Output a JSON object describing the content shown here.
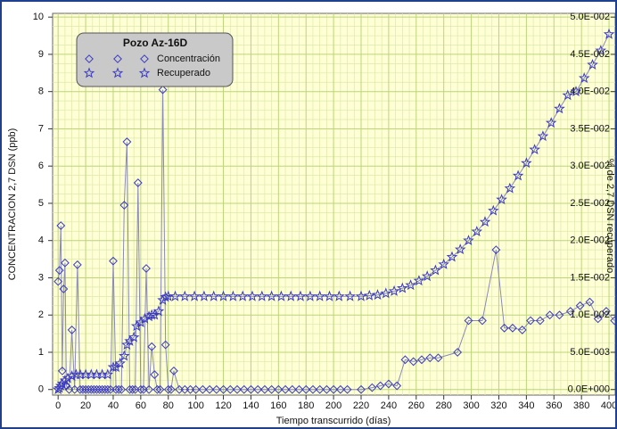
{
  "chart_data": {
    "type": "line",
    "legend_title": "Pozo Az-16D",
    "xlabel": "Tiempo transcurrido (días)",
    "ylabel": "CONCENTRACION 2,7 DSN (ppb)",
    "y2label": "% de 2,7 DSN recuperado",
    "xlim": [
      -4,
      404.5
    ],
    "xticks": [
      0,
      20,
      40,
      60,
      80,
      100,
      120,
      140,
      160,
      180,
      200,
      220,
      240,
      260,
      280,
      300,
      320,
      340,
      360,
      380,
      400
    ],
    "ylim": [
      -0.15,
      10.1
    ],
    "yticks": [
      0,
      1,
      2,
      3,
      4,
      5,
      6,
      7,
      8,
      9,
      10
    ],
    "y2lim": [
      -0.00075,
      0.0505
    ],
    "y2ticks": [
      {
        "value": 0,
        "label": "0.0E+000"
      },
      {
        "value": 0.005,
        "label": "5.0E-003"
      },
      {
        "value": 0.01,
        "label": "1.0E-002"
      },
      {
        "value": 0.015,
        "label": "1.5E-002"
      },
      {
        "value": 0.02,
        "label": "2.0E-002"
      },
      {
        "value": 0.025,
        "label": "2.5E-002"
      },
      {
        "value": 0.03,
        "label": "3.0E-002"
      },
      {
        "value": 0.035,
        "label": "3.5E-002"
      },
      {
        "value": 0.04,
        "label": "4.0E-002"
      },
      {
        "value": 0.045,
        "label": "4.5E-002"
      },
      {
        "value": 0.05,
        "label": "5.0E-002"
      }
    ],
    "grid": true,
    "legend": "upper left",
    "series": [
      {
        "name": "Concentración",
        "color": "#3a3ac4",
        "marker": "diamond",
        "x": [
          0,
          1,
          2,
          3,
          4,
          5,
          6,
          8,
          10,
          12,
          14,
          16,
          18,
          20,
          22,
          24,
          26,
          28,
          30,
          32,
          34,
          36,
          38,
          40,
          42,
          44,
          46,
          48,
          50,
          52,
          54,
          56,
          58,
          60,
          62,
          64,
          66,
          68,
          70,
          72,
          74,
          76,
          78,
          80,
          82,
          84,
          88,
          92,
          96,
          100,
          105,
          110,
          115,
          120,
          125,
          130,
          135,
          140,
          145,
          150,
          155,
          160,
          165,
          170,
          175,
          180,
          185,
          190,
          195,
          200,
          205,
          210,
          220,
          228,
          234,
          240,
          246,
          252,
          258,
          264,
          270,
          276,
          290,
          298,
          308,
          318,
          324,
          330,
          337,
          343,
          350,
          357,
          364,
          372,
          379,
          386,
          392,
          398,
          404
        ],
        "values": [
          2.9,
          3.2,
          4.4,
          0.5,
          2.7,
          3.4,
          0.1,
          0,
          1.6,
          0,
          3.35,
          0,
          0,
          0,
          0,
          0,
          0,
          0,
          0,
          0,
          0,
          0,
          0,
          3.45,
          0,
          0,
          0,
          4.95,
          6.65,
          0,
          0,
          0,
          5.55,
          0,
          0,
          3.25,
          0,
          1.15,
          0.4,
          0,
          0,
          8.05,
          1.2,
          0,
          0,
          0.5,
          0,
          0,
          0,
          0,
          0,
          0,
          0,
          0,
          0,
          0,
          0,
          0,
          0,
          0,
          0,
          0,
          0,
          0,
          0,
          0,
          0,
          0,
          0,
          0,
          0,
          0,
          0,
          0.05,
          0.1,
          0.15,
          0.1,
          0.8,
          0.75,
          0.8,
          0.85,
          0.85,
          1.0,
          1.85,
          1.85,
          3.75,
          1.65,
          1.65,
          1.6,
          1.85,
          1.85,
          2.0,
          2.0,
          2.1,
          2.25,
          2.35,
          1.9,
          2.1,
          1.85
        ]
      },
      {
        "name": "Recuperado",
        "color": "#3a3ac4",
        "marker": "star",
        "axis": "y2",
        "x": [
          0,
          1,
          2,
          3,
          5,
          7,
          10,
          13,
          16,
          20,
          24,
          28,
          32,
          36,
          40,
          42,
          45,
          48,
          50,
          52,
          55,
          57,
          60,
          63,
          66,
          68,
          70,
          73,
          76,
          78,
          80,
          85,
          92,
          99,
          106,
          113,
          120,
          127,
          134,
          141,
          148,
          155,
          162,
          169,
          176,
          183,
          190,
          197,
          204,
          212,
          220,
          226,
          232,
          238,
          244,
          250,
          256,
          262,
          268,
          274,
          280,
          286,
          292,
          298,
          304,
          310,
          316,
          322,
          328,
          334,
          340,
          346,
          352,
          358,
          364,
          370,
          376,
          382,
          388,
          394,
          400
        ],
        "values": [
          0,
          0.0002,
          0.0005,
          0.0008,
          0.0012,
          0.0015,
          0.0018,
          0.002,
          0.002,
          0.002,
          0.002,
          0.002,
          0.002,
          0.002,
          0.003,
          0.003,
          0.0035,
          0.0045,
          0.006,
          0.0065,
          0.007,
          0.0085,
          0.009,
          0.0095,
          0.0098,
          0.01,
          0.01,
          0.0105,
          0.012,
          0.0124,
          0.0125,
          0.0125,
          0.0125,
          0.0125,
          0.0125,
          0.0125,
          0.0125,
          0.0125,
          0.0125,
          0.0125,
          0.0125,
          0.0125,
          0.0125,
          0.0125,
          0.0125,
          0.0125,
          0.0125,
          0.0125,
          0.0125,
          0.0125,
          0.0125,
          0.0126,
          0.0127,
          0.0129,
          0.0132,
          0.0136,
          0.014,
          0.0146,
          0.0152,
          0.016,
          0.0168,
          0.0178,
          0.0188,
          0.02,
          0.0212,
          0.0225,
          0.024,
          0.0255,
          0.027,
          0.0287,
          0.0304,
          0.0322,
          0.034,
          0.0358,
          0.0377,
          0.0395,
          0.04,
          0.0418,
          0.0436,
          0.0455,
          0.0477
        ]
      }
    ]
  }
}
